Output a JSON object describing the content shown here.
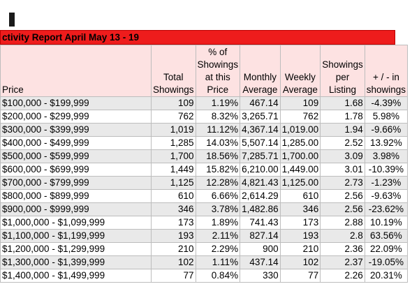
{
  "report": {
    "title": "ctivity Report April May 13 -  19",
    "headers": {
      "price": "Price",
      "total": "Total Showings",
      "pct": "% of Showings at this Price",
      "monthly": "Monthly Average",
      "weekly": "Weekly Average",
      "per_listing": "Showings per Listing",
      "change": "+ / - in showings"
    },
    "rows": [
      {
        "price": "$100,000 - $199,999",
        "total": "109",
        "pct": "1.19%",
        "monthly": "467.14",
        "weekly": "109",
        "per_listing": "1.68",
        "change": "-4.39%"
      },
      {
        "price": "$200,000 - $299,999",
        "total": "762",
        "pct": "8.32%",
        "monthly": "3,265.71",
        "weekly": "762",
        "per_listing": "1.78",
        "change": "5.98%"
      },
      {
        "price": "$300,000 - $399,999",
        "total": "1,019",
        "pct": "11.12%",
        "monthly": "4,367.14",
        "weekly": "1,019.00",
        "per_listing": "1.94",
        "change": "-9.66%"
      },
      {
        "price": "$400,000 - $499,999",
        "total": "1,285",
        "pct": "14.03%",
        "monthly": "5,507.14",
        "weekly": "1,285.00",
        "per_listing": "2.52",
        "change": "13.92%"
      },
      {
        "price": "$500,000 - $599,999",
        "total": "1,700",
        "pct": "18.56%",
        "monthly": "7,285.71",
        "weekly": "1,700.00",
        "per_listing": "3.09",
        "change": "3.98%"
      },
      {
        "price": "$600,000 - $699,999",
        "total": "1,449",
        "pct": "15.82%",
        "monthly": "6,210.00",
        "weekly": "1,449.00",
        "per_listing": "3.01",
        "change": "-10.39%"
      },
      {
        "price": "$700,000 - $799,999",
        "total": "1,125",
        "pct": "12.28%",
        "monthly": "4,821.43",
        "weekly": "1,125.00",
        "per_listing": "2.73",
        "change": "-1.23%"
      },
      {
        "price": "$800,000 - $899,999",
        "total": "610",
        "pct": "6.66%",
        "monthly": "2,614.29",
        "weekly": "610",
        "per_listing": "2.56",
        "change": "-9.63%"
      },
      {
        "price": "$900,000 - $999,999",
        "total": "346",
        "pct": "3.78%",
        "monthly": "1,482.86",
        "weekly": "346",
        "per_listing": "2.56",
        "change": "-23.62%"
      },
      {
        "price": "$1,000,000 - $1,099,999",
        "total": "173",
        "pct": "1.89%",
        "monthly": "741.43",
        "weekly": "173",
        "per_listing": "2.88",
        "change": "10.19%"
      },
      {
        "price": "$1,100,000 - $1,199,999",
        "total": "193",
        "pct": "2.11%",
        "monthly": "827.14",
        "weekly": "193",
        "per_listing": "2.8",
        "change": "63.56%"
      },
      {
        "price": "$1,200,000 - $1,299,999",
        "total": "210",
        "pct": "2.29%",
        "monthly": "900",
        "weekly": "210",
        "per_listing": "2.36",
        "change": "22.09%"
      },
      {
        "price": "$1,300,000 - $1,399,999",
        "total": "102",
        "pct": "1.11%",
        "monthly": "437.14",
        "weekly": "102",
        "per_listing": "2.37",
        "change": "-19.05%"
      },
      {
        "price": "$1,400,000 - $1,499,999",
        "total": "77",
        "pct": "0.84%",
        "monthly": "330",
        "weekly": "77",
        "per_listing": "2.26",
        "change": "20.31%"
      }
    ]
  }
}
